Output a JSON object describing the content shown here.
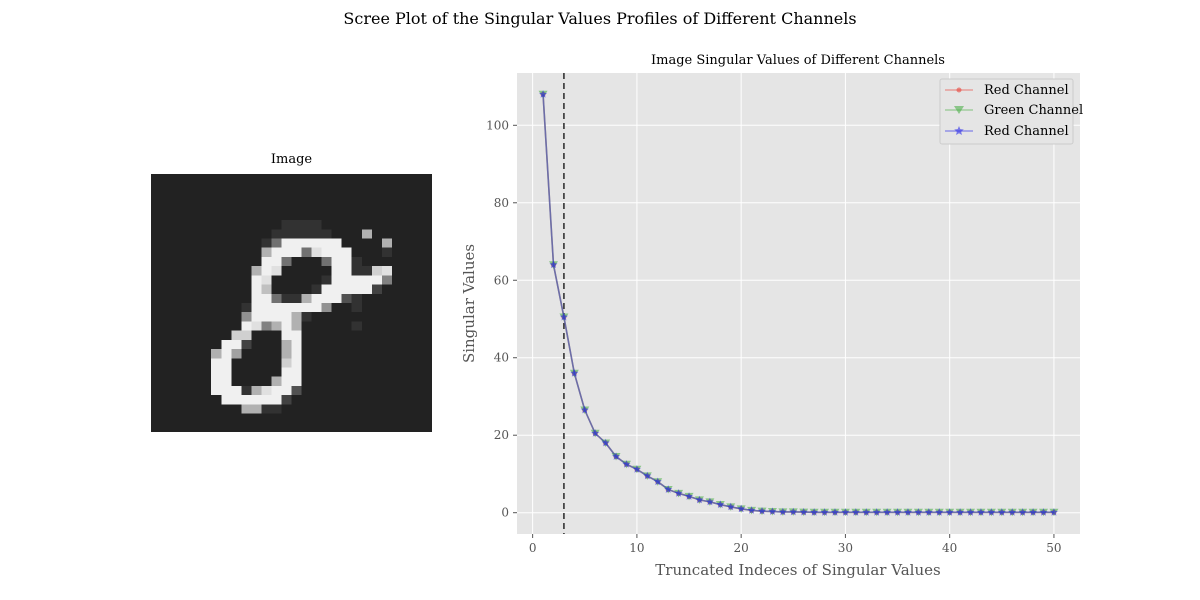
{
  "suptitle": "Scree Plot of the Singular Values Profiles of Different Channels",
  "image_panel": {
    "title": "Image",
    "colormap": "gray",
    "pixel_rows": [
      "1111111111111111111111111111",
      "1111111111111111111111111111",
      "1111111111111111111111111111",
      "1111111111111111111111111111",
      "1111111111111111111111111111",
      "1111111111111222211111111111",
      "111111111111222222111a111111",
      "1111111111126eeeeee1111a1111",
      "11111111111aeee6deee11121111",
      "11111111111ee61116ee21111111",
      "1111111111aed11111ee22cd1111",
      "1111111111ed111112eeeee71111",
      "1111111111eb11112eeeee311111",
      "1111111111ee622aeee421111111",
      "1111111112eeeeeee81121111111",
      "1111111118eeeea2111111111111",
      "111111111ed7aea1111121111111",
      "11111111cc111ee1111111111111",
      "1111111ee3111ae1111111111111",
      "111111ae91111ae1111111111111",
      "111111ee11111ce1111111111111",
      "111111ee11111ee1111111111111",
      "111111ee1111aee1111111111111",
      "111111eee2adee41111111111111",
      "1111111eeeeee311111111111111",
      "111111111aa22111111111111111",
      "1111111111111111111111111111",
      "1111111111111111111111111111"
    ]
  },
  "chart_data": {
    "type": "line",
    "title": "Image Singular Values of Different Channels",
    "xlabel": "Truncated Indeces of Singular Values",
    "ylabel": "Singular Values",
    "xlim": [
      -1.5,
      52.5
    ],
    "ylim": [
      -5.5,
      113.5
    ],
    "xticks": [
      0,
      10,
      20,
      30,
      40,
      50
    ],
    "yticks": [
      0,
      20,
      40,
      60,
      80,
      100
    ],
    "grid": true,
    "legend_position": "top-right",
    "vertical_reference_line": {
      "x": 3,
      "style": "dashed",
      "color": "#333333"
    },
    "x": [
      1,
      2,
      3,
      4,
      5,
      6,
      7,
      8,
      9,
      10,
      11,
      12,
      13,
      14,
      15,
      16,
      17,
      18,
      19,
      20,
      21,
      22,
      23,
      24,
      25,
      26,
      27,
      28,
      29,
      30,
      31,
      32,
      33,
      34,
      35,
      36,
      37,
      38,
      39,
      40,
      41,
      42,
      43,
      44,
      45,
      46,
      47,
      48,
      49,
      50
    ],
    "series": [
      {
        "name": "Red Channel",
        "color": "#e8443a",
        "marker": "circle",
        "values": [
          108,
          64,
          50.5,
          36,
          26.5,
          20.5,
          18,
          14.5,
          12.5,
          11.2,
          9.5,
          8,
          6,
          5,
          4.2,
          3.3,
          2.8,
          2.1,
          1.5,
          1,
          0.6,
          0.4,
          0.3,
          0.2,
          0.2,
          0.15,
          0.1,
          0.1,
          0.1,
          0.1,
          0.1,
          0.1,
          0.1,
          0.1,
          0.1,
          0.1,
          0.1,
          0.1,
          0.1,
          0.1,
          0.1,
          0.1,
          0.1,
          0.1,
          0.1,
          0.1,
          0.1,
          0.1,
          0.1,
          0.1
        ]
      },
      {
        "name": "Green Channel",
        "color": "#4daf4a",
        "marker": "triangle-down",
        "values": [
          108,
          64,
          50.5,
          36,
          26.5,
          20.5,
          18,
          14.5,
          12.5,
          11.2,
          9.5,
          8,
          6,
          5,
          4.2,
          3.3,
          2.8,
          2.1,
          1.5,
          1,
          0.6,
          0.4,
          0.3,
          0.2,
          0.2,
          0.15,
          0.1,
          0.1,
          0.1,
          0.1,
          0.1,
          0.1,
          0.1,
          0.1,
          0.1,
          0.1,
          0.1,
          0.1,
          0.1,
          0.1,
          0.1,
          0.1,
          0.1,
          0.1,
          0.1,
          0.1,
          0.1,
          0.1,
          0.1,
          0.1
        ]
      },
      {
        "name": "Red Channel",
        "color": "#2a2ae8",
        "marker": "star",
        "values": [
          108,
          64,
          50.5,
          36,
          26.5,
          20.5,
          18,
          14.5,
          12.5,
          11.2,
          9.5,
          8,
          6,
          5,
          4.2,
          3.3,
          2.8,
          2.1,
          1.5,
          1,
          0.6,
          0.4,
          0.3,
          0.2,
          0.2,
          0.15,
          0.1,
          0.1,
          0.1,
          0.1,
          0.1,
          0.1,
          0.1,
          0.1,
          0.1,
          0.1,
          0.1,
          0.1,
          0.1,
          0.1,
          0.1,
          0.1,
          0.1,
          0.1,
          0.1,
          0.1,
          0.1,
          0.1,
          0.1,
          0.1
        ]
      }
    ]
  }
}
